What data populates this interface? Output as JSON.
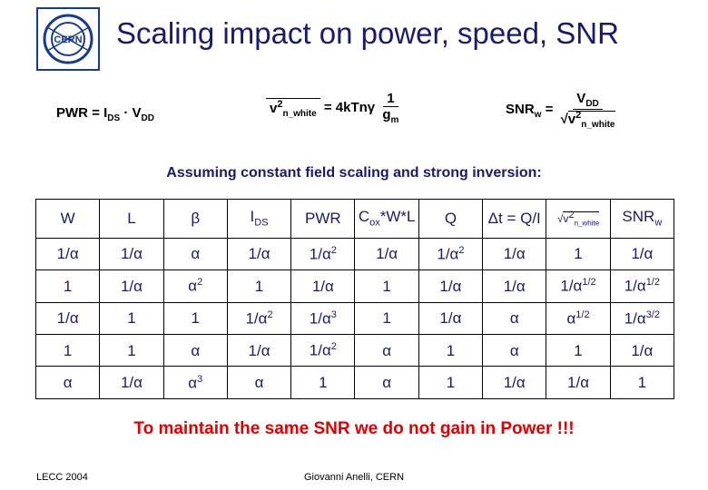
{
  "title": "Scaling impact on power, speed, SNR",
  "equations": {
    "pwr": "PWR = IDS · VDD",
    "noise_lhs": "v²n_white",
    "noise_eq": "= 4kTnγ ·",
    "noise_num": "1",
    "noise_den": "gm",
    "snr_lhs": "SNRw =",
    "snr_num": "VDD",
    "snr_den": "v²n_white"
  },
  "subtitle": "Assuming constant field scaling and strong inversion:",
  "table": {
    "headers": [
      "W",
      "L",
      "β",
      "IDS",
      "PWR",
      "Cox*W*L",
      "Q",
      "Δt = Q/I",
      "√v²n_white",
      "SNRw"
    ],
    "rows": [
      [
        "1/α",
        "1/α",
        "α",
        "1/α",
        "1/α²",
        "1/α",
        "1/α²",
        "1/α",
        "1",
        "1/α"
      ],
      [
        "1",
        "1/α",
        "α²",
        "1",
        "1/α",
        "1",
        "1/α",
        "1/α",
        "1/α1/2",
        "1/α1/2"
      ],
      [
        "1/α",
        "1",
        "1",
        "1/α²",
        "1/α³",
        "1",
        "1/α",
        "α",
        "α1/2",
        "1/α3/2"
      ],
      [
        "1",
        "1",
        "α",
        "1/α",
        "1/α²",
        "α",
        "1",
        "α",
        "1",
        "1/α"
      ],
      [
        "α",
        "1/α",
        "α³",
        "α",
        "1",
        "α",
        "1",
        "1/α",
        "1/α",
        "1"
      ]
    ]
  },
  "conclusion": "To maintain the same SNR we do not gain in Power !!!",
  "footer": {
    "left": "LECC 2004",
    "center": "Giovanni Anelli, CERN"
  },
  "logo_text": "CERN",
  "colors": {
    "title": "#1a1a6e",
    "conclusion": "#e10000",
    "table_text": "#1a1a6e"
  }
}
